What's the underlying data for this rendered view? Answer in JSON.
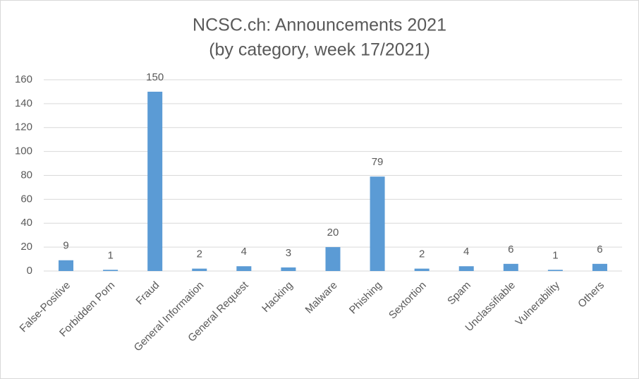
{
  "chart_data": {
    "type": "bar",
    "title": "NCSC.ch: Announcements 2021",
    "subtitle": "(by category, week 17/2021)",
    "categories": [
      "False-Positive",
      "Forbidden Porn",
      "Fraud",
      "General Information",
      "General Request",
      "Hacking",
      "Malware",
      "Phishing",
      "Sextortion",
      "Spam",
      "Unclassifiable",
      "Vulnerability",
      "Others"
    ],
    "values": [
      9,
      1,
      150,
      2,
      4,
      3,
      20,
      79,
      2,
      4,
      6,
      1,
      6
    ],
    "color": "#5b9bd5",
    "ylim": [
      0,
      160
    ],
    "yticks": [
      0,
      20,
      40,
      60,
      80,
      100,
      120,
      140,
      160
    ],
    "grid": true
  }
}
